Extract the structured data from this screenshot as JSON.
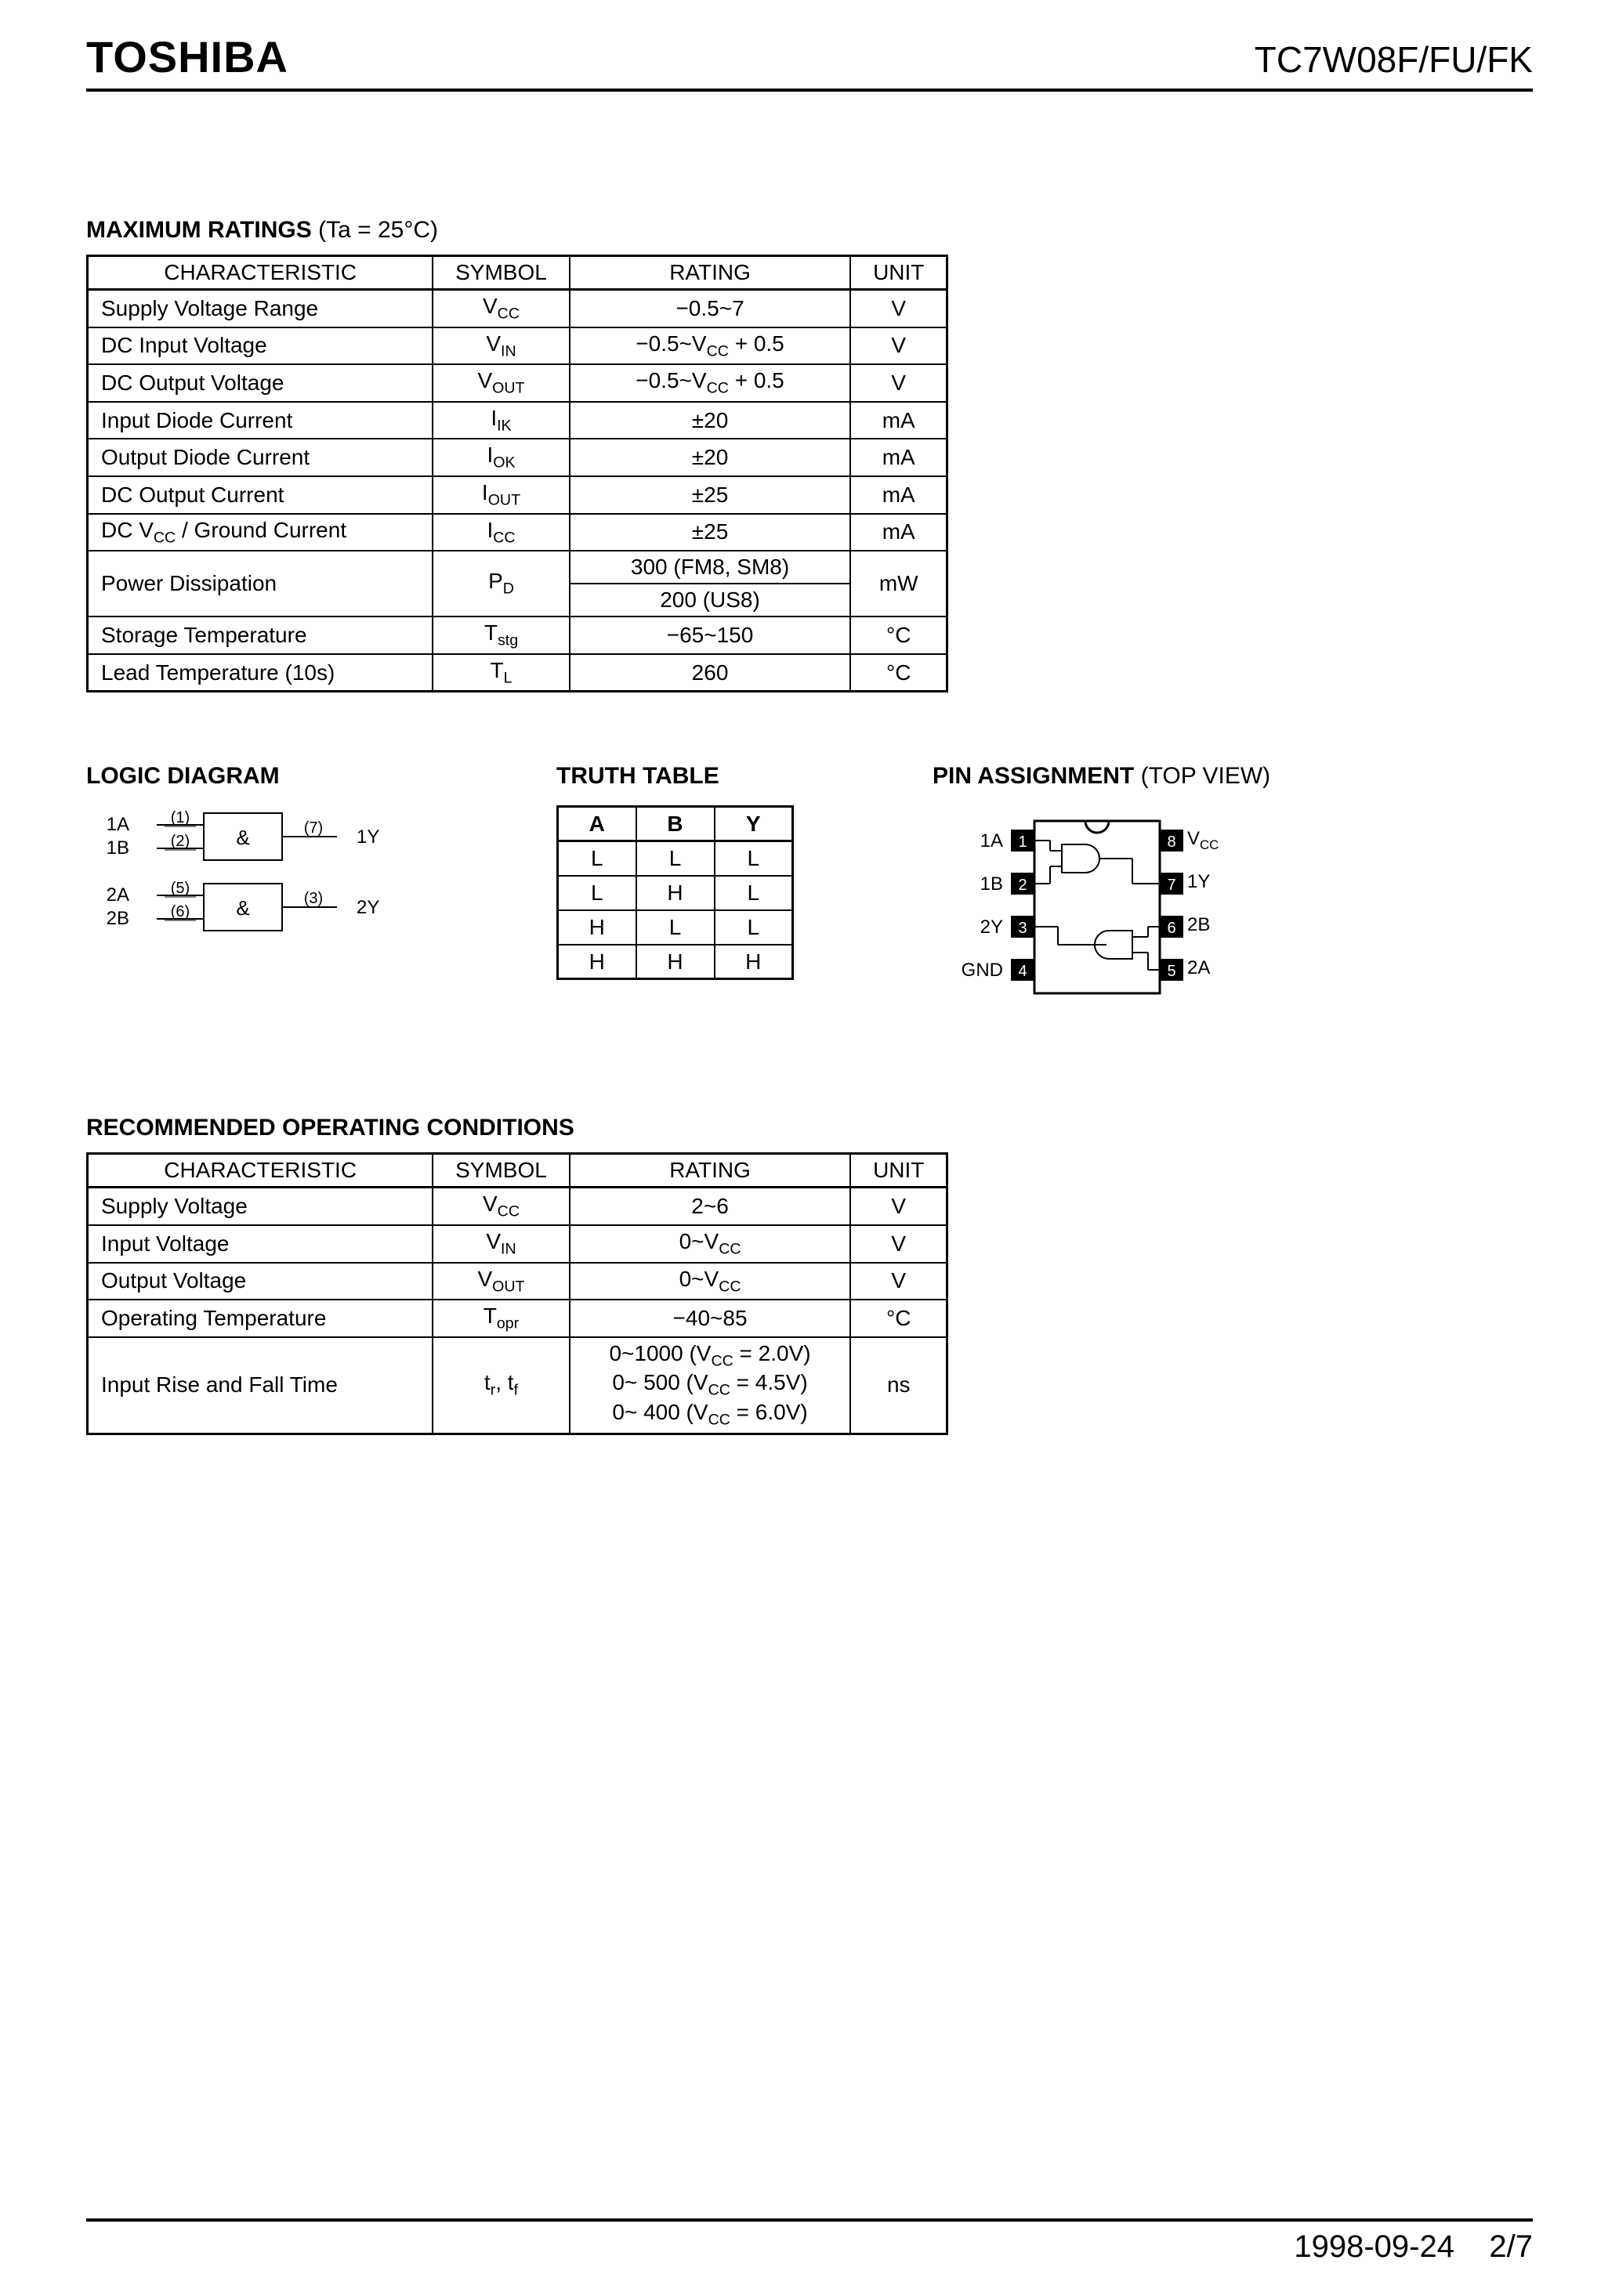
{
  "header": {
    "brand": "TOSHIBA",
    "part_number": "TC7W08F/FU/FK"
  },
  "maximum_ratings": {
    "title": "MAXIMUM RATINGS",
    "condition": "(Ta = 25°C)",
    "columns": [
      "CHARACTERISTIC",
      "SYMBOL",
      "RATING",
      "UNIT"
    ],
    "rows": [
      {
        "char": "Supply Voltage Range",
        "sym_html": "V<sub>CC</sub>",
        "rating": "−0.5~7",
        "unit": "V"
      },
      {
        "char": "DC Input Voltage",
        "sym_html": "V<sub>IN</sub>",
        "rating_html": "−0.5~V<sub>CC</sub> + 0.5",
        "unit": "V"
      },
      {
        "char": "DC Output Voltage",
        "sym_html": "V<sub>OUT</sub>",
        "rating_html": "−0.5~V<sub>CC</sub> + 0.5",
        "unit": "V"
      },
      {
        "char": "Input Diode Current",
        "sym_html": "I<sub>IK</sub>",
        "rating": "±20",
        "unit": "mA"
      },
      {
        "char": "Output Diode Current",
        "sym_html": "I<sub>OK</sub>",
        "rating": "±20",
        "unit": "mA"
      },
      {
        "char": "DC Output Current",
        "sym_html": "I<sub>OUT</sub>",
        "rating": "±25",
        "unit": "mA"
      },
      {
        "char_html": "DC V<sub>CC</sub> / Ground Current",
        "sym_html": "I<sub>CC</sub>",
        "rating": "±25",
        "unit": "mA"
      },
      {
        "char": "Power Dissipation",
        "sym_html": "P<sub>D</sub>",
        "rating_lines": [
          "300 (FM8, SM8)",
          "200 (US8)"
        ],
        "unit": "mW",
        "rowspan": 2
      },
      {
        "char": "Storage Temperature",
        "sym_html": "T<sub>stg</sub>",
        "rating": "−65~150",
        "unit": "°C"
      },
      {
        "char": "Lead Temperature (10s)",
        "sym_html": "T<sub>L</sub>",
        "rating": "260",
        "unit": "°C"
      }
    ]
  },
  "logic_diagram": {
    "title": "LOGIC DIAGRAM",
    "gates": [
      {
        "inputs": [
          {
            "label": "1A",
            "pin": "(1)"
          },
          {
            "label": "1B",
            "pin": "(2)"
          }
        ],
        "output": {
          "label": "1Y",
          "pin": "(7)"
        }
      },
      {
        "inputs": [
          {
            "label": "2A",
            "pin": "(5)"
          },
          {
            "label": "2B",
            "pin": "(6)"
          }
        ],
        "output": {
          "label": "2Y",
          "pin": "(3)"
        }
      }
    ],
    "gate_symbol": "&"
  },
  "truth_table": {
    "title": "TRUTH TABLE",
    "headers": [
      "A",
      "B",
      "Y"
    ],
    "rows": [
      [
        "L",
        "L",
        "L"
      ],
      [
        "L",
        "H",
        "L"
      ],
      [
        "H",
        "L",
        "L"
      ],
      [
        "H",
        "H",
        "H"
      ]
    ]
  },
  "pin_assignment": {
    "title": "PIN ASSIGNMENT",
    "subtitle": "(TOP VIEW)",
    "left_pins": [
      {
        "num": "1",
        "label": "1A"
      },
      {
        "num": "2",
        "label": "1B"
      },
      {
        "num": "3",
        "label": "2Y"
      },
      {
        "num": "4",
        "label": "GND"
      }
    ],
    "right_pins": [
      {
        "num": "8",
        "label_html": "V<sub>CC</sub>"
      },
      {
        "num": "7",
        "label": "1Y"
      },
      {
        "num": "6",
        "label": "2B"
      },
      {
        "num": "5",
        "label": "2A"
      }
    ]
  },
  "recommended": {
    "title": "RECOMMENDED OPERATING CONDITIONS",
    "columns": [
      "CHARACTERISTIC",
      "SYMBOL",
      "RATING",
      "UNIT"
    ],
    "rows": [
      {
        "char": "Supply Voltage",
        "sym_html": "V<sub>CC</sub>",
        "rating": "2~6",
        "unit": "V"
      },
      {
        "char": "Input Voltage",
        "sym_html": "V<sub>IN</sub>",
        "rating_html": "0~V<sub>CC</sub>",
        "unit": "V"
      },
      {
        "char": "Output Voltage",
        "sym_html": "V<sub>OUT</sub>",
        "rating_html": "0~V<sub>CC</sub>",
        "unit": "V"
      },
      {
        "char": "Operating Temperature",
        "sym_html": "T<sub>opr</sub>",
        "rating": "−40~85",
        "unit": "°C"
      },
      {
        "char": "Input Rise and Fall Time",
        "sym_html": "t<sub>r</sub>, t<sub>f</sub>",
        "rating_lines_html": [
          "0~1000 (V<sub>CC</sub> = 2.0V)",
          "0~ 500 (V<sub>CC</sub> = 4.5V)",
          "0~ 400 (V<sub>CC</sub> = 6.0V)"
        ],
        "unit": "ns"
      }
    ]
  },
  "footer": {
    "date": "1998-09-24",
    "page": "2/7"
  },
  "colors": {
    "text": "#000000",
    "background": "#ffffff",
    "border": "#000000"
  }
}
